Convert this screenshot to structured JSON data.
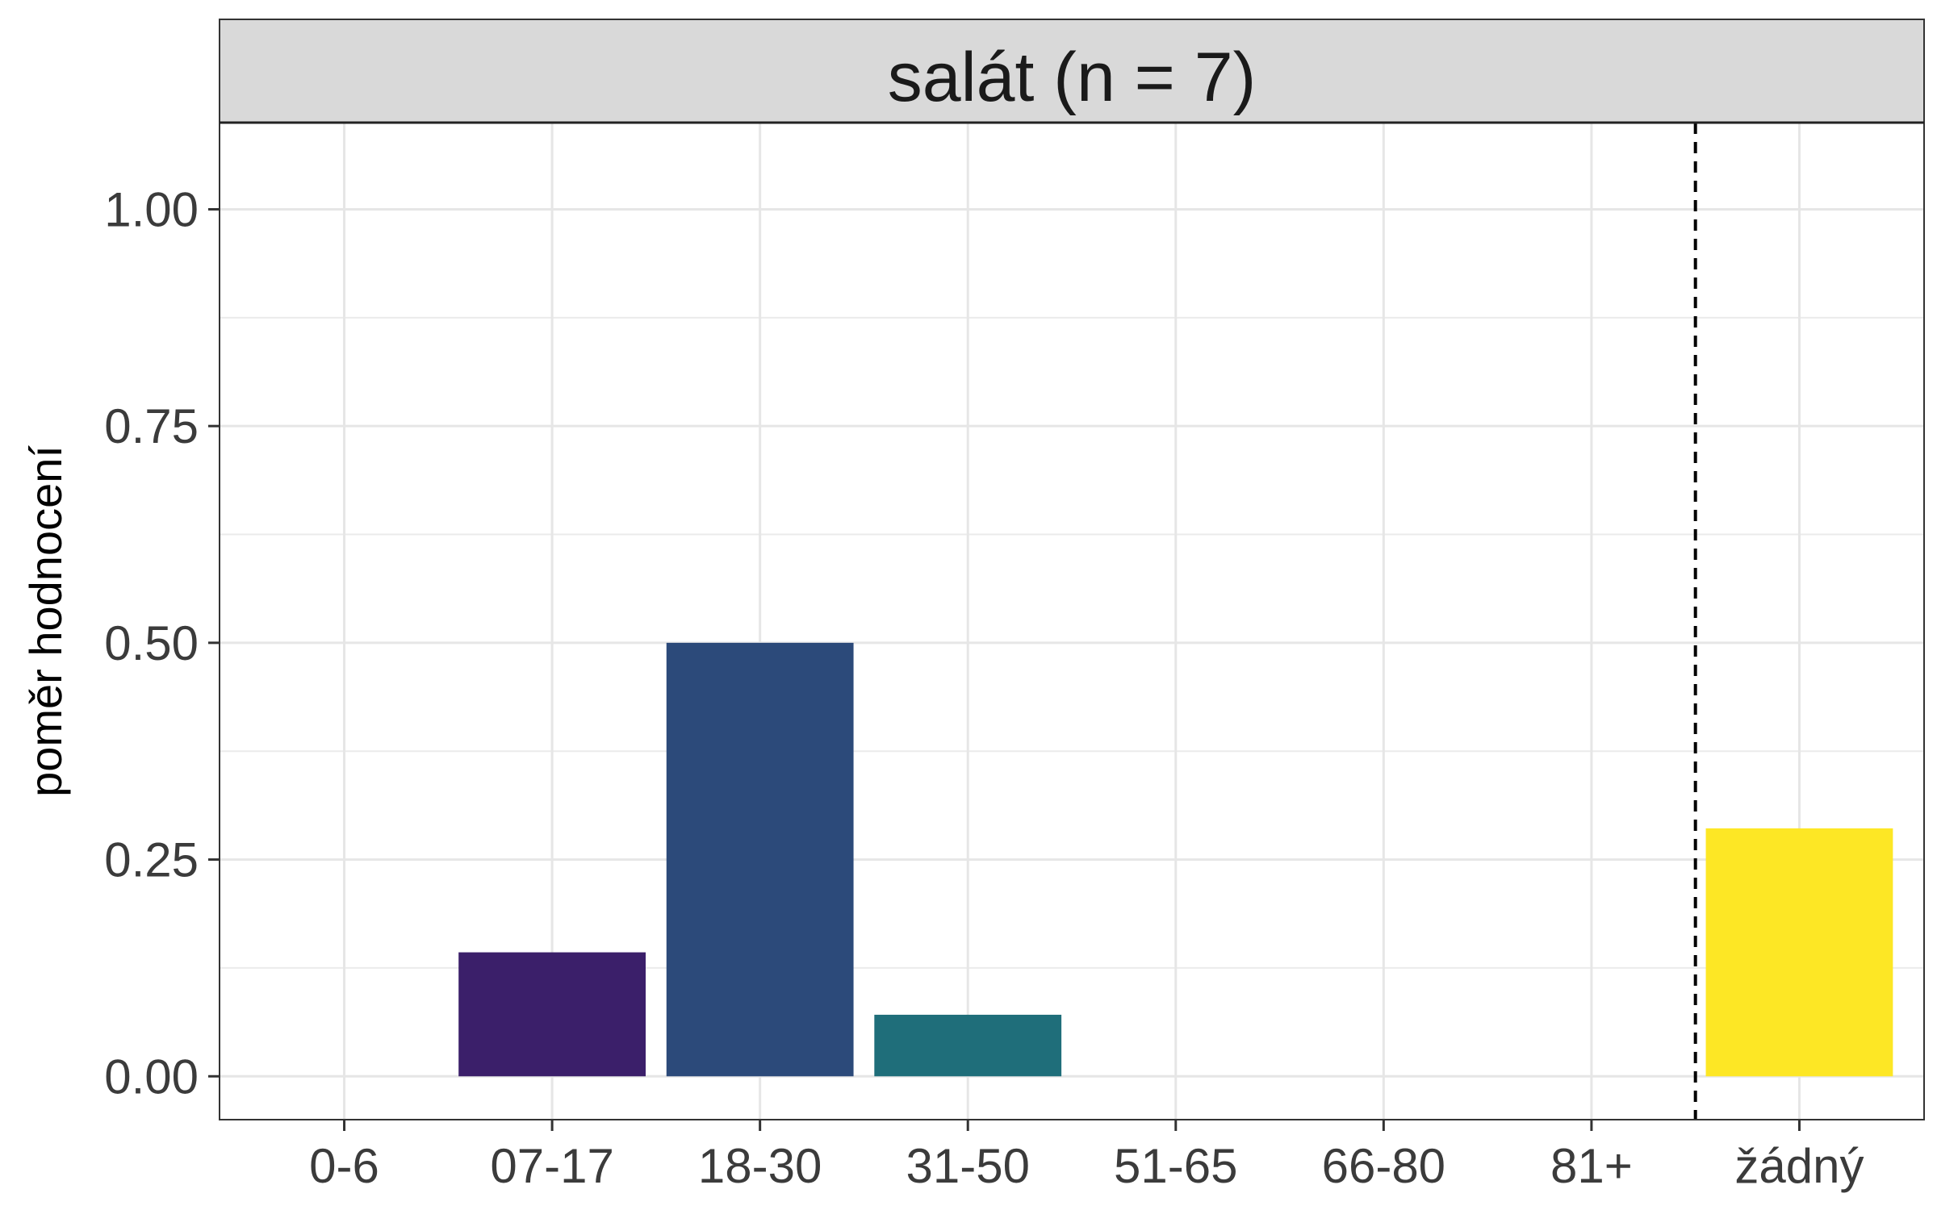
{
  "chart_data": {
    "type": "bar",
    "facet_title": "salát (n = 7)",
    "ylabel": "poměr hodnocení",
    "xlabel": "",
    "categories": [
      "0-6",
      "07-17",
      "18-30",
      "31-50",
      "51-65",
      "66-80",
      "81+",
      "žádný"
    ],
    "values": [
      0,
      0.143,
      0.5,
      0.071,
      0,
      0,
      0,
      0.286
    ],
    "colors": [
      "#440154",
      "#3B1F6A",
      "#2C4A7A",
      "#1F6E7A",
      "#21918C",
      "#35B779",
      "#8FD744",
      "#FDE725"
    ],
    "ylim": [
      -0.05,
      1.1
    ],
    "yticks": [
      0.0,
      0.25,
      0.5,
      0.75,
      1.0
    ],
    "ytick_labels": [
      "0.00",
      "0.25",
      "0.50",
      "0.75",
      "1.00"
    ],
    "separator_after_category": "81+",
    "grid": true,
    "legend": "none"
  }
}
